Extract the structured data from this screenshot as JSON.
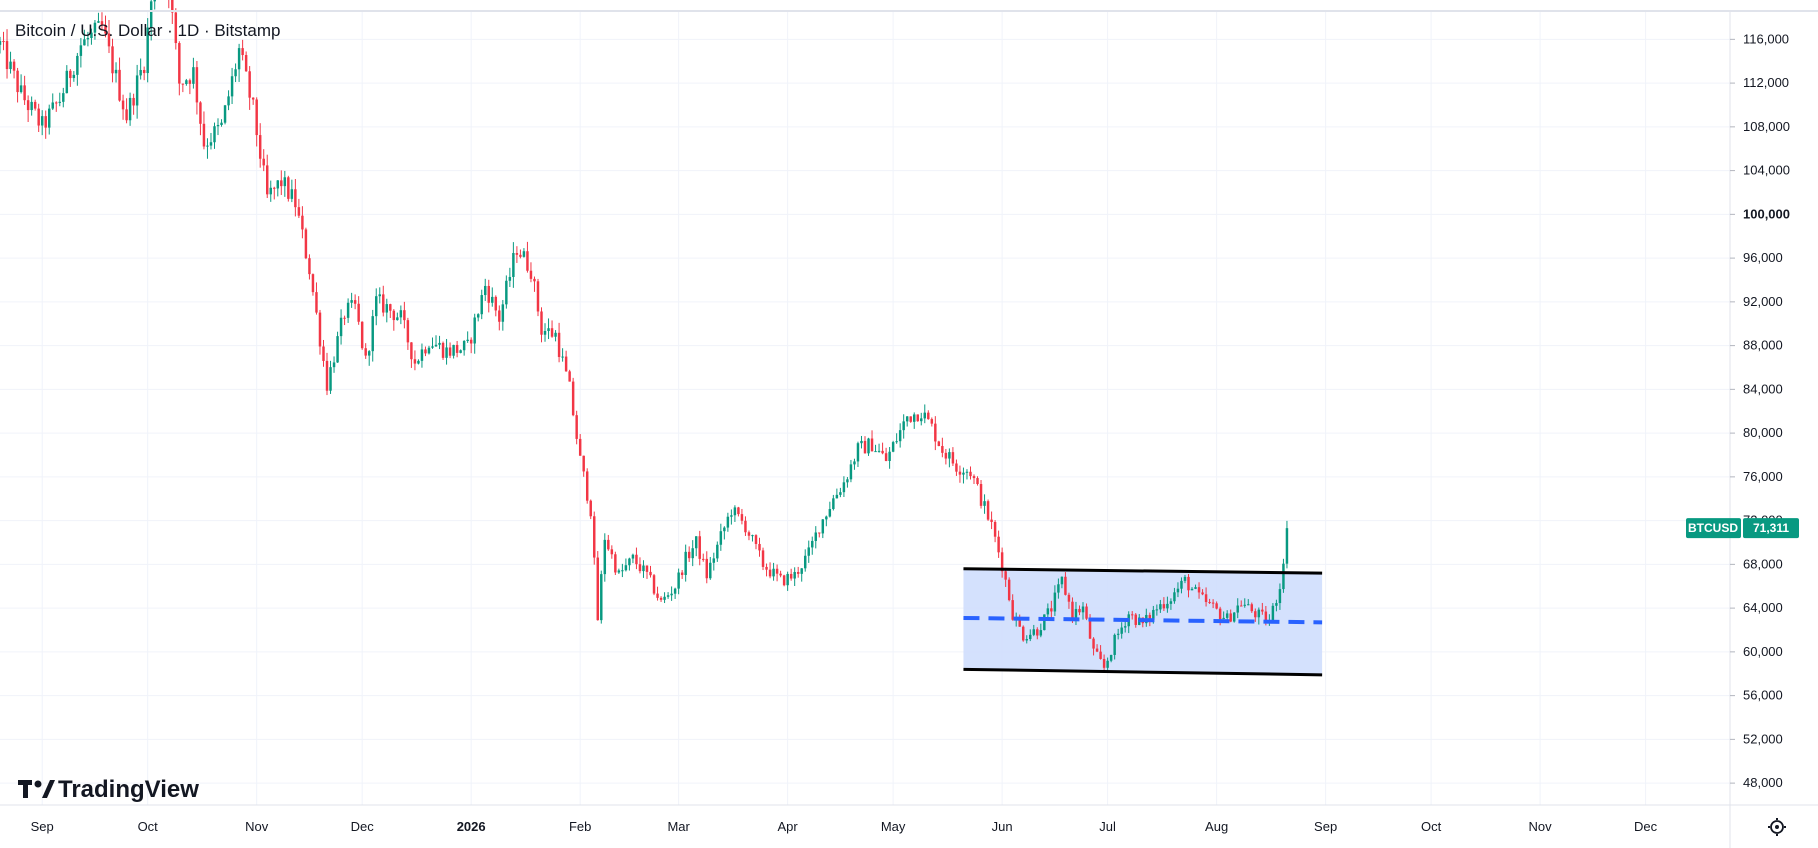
{
  "chart_data": {
    "type": "candlestick",
    "title": "Bitcoin / U.S. Dollar · 1D · Bitstamp",
    "symbol": "BTCUSD",
    "last_price": 71311,
    "last_price_label": "71,311",
    "ylim": [
      46000,
      118500
    ],
    "y_ticks": [
      48000,
      52000,
      56000,
      60000,
      64000,
      68000,
      72000,
      76000,
      80000,
      84000,
      88000,
      92000,
      96000,
      100000,
      104000,
      108000,
      112000,
      116000
    ],
    "y_tick_labels": [
      "48,000",
      "52,000",
      "56,000",
      "60,000",
      "64,000",
      "68,000",
      "72,000",
      "76,000",
      "80,000",
      "84,000",
      "88,000",
      "92,000",
      "96,000",
      "100,000",
      "104,000",
      "108,000",
      "112,000",
      "116,000"
    ],
    "x_range": [
      "2025-08-20",
      "2026-12-25"
    ],
    "x_ticks": [
      {
        "date": "2025-09-01",
        "label": "Sep"
      },
      {
        "date": "2025-10-01",
        "label": "Oct"
      },
      {
        "date": "2025-11-01",
        "label": "Nov"
      },
      {
        "date": "2025-12-01",
        "label": "Dec"
      },
      {
        "date": "2026-01-01",
        "label": "2026",
        "bold": true
      },
      {
        "date": "2026-02-01",
        "label": "Feb"
      },
      {
        "date": "2026-03-01",
        "label": "Mar"
      },
      {
        "date": "2026-04-01",
        "label": "Apr"
      },
      {
        "date": "2026-05-01",
        "label": "May"
      },
      {
        "date": "2026-06-01",
        "label": "Jun"
      },
      {
        "date": "2026-07-01",
        "label": "Jul"
      },
      {
        "date": "2026-08-01",
        "label": "Aug"
      },
      {
        "date": "2026-09-01",
        "label": "Sep"
      },
      {
        "date": "2026-10-01",
        "label": "Oct"
      },
      {
        "date": "2026-11-01",
        "label": "Nov"
      },
      {
        "date": "2026-12-01",
        "label": "Dec"
      }
    ],
    "grid": true,
    "price_path": [
      [
        "2025-08-20",
        115500
      ],
      [
        "2025-08-26",
        111000
      ],
      [
        "2025-09-01",
        108000
      ],
      [
        "2025-09-06",
        110500
      ],
      [
        "2025-09-12",
        115500
      ],
      [
        "2025-09-18",
        117000
      ],
      [
        "2025-09-25",
        109000
      ],
      [
        "2025-09-30",
        114000
      ],
      [
        "2025-10-02",
        119500
      ],
      [
        "2025-10-06",
        124000
      ],
      [
        "2025-10-10",
        112000
      ],
      [
        "2025-10-14",
        113000
      ],
      [
        "2025-10-17",
        106500
      ],
      [
        "2025-10-22",
        108000
      ],
      [
        "2025-10-27",
        115000
      ],
      [
        "2025-10-31",
        109500
      ],
      [
        "2025-11-04",
        101500
      ],
      [
        "2025-11-08",
        103000
      ],
      [
        "2025-11-12",
        101000
      ],
      [
        "2025-11-16",
        95000
      ],
      [
        "2025-11-21",
        84500
      ],
      [
        "2025-11-26",
        91000
      ],
      [
        "2025-11-29",
        91500
      ],
      [
        "2025-12-02",
        86500
      ],
      [
        "2025-12-05",
        92000
      ],
      [
        "2025-12-08",
        91500
      ],
      [
        "2025-12-12",
        90500
      ],
      [
        "2025-12-16",
        86500
      ],
      [
        "2025-12-20",
        88500
      ],
      [
        "2025-12-25",
        87500
      ],
      [
        "2025-12-31",
        87800
      ],
      [
        "2026-01-05",
        93500
      ],
      [
        "2026-01-09",
        90500
      ],
      [
        "2026-01-14",
        97000
      ],
      [
        "2026-01-18",
        95000
      ],
      [
        "2026-01-21",
        89500
      ],
      [
        "2026-01-25",
        89000
      ],
      [
        "2026-01-29",
        84000
      ],
      [
        "2026-02-01",
        77500
      ],
      [
        "2026-02-04",
        73000
      ],
      [
        "2026-02-06",
        63000
      ],
      [
        "2026-02-08",
        70500
      ],
      [
        "2026-02-12",
        67000
      ],
      [
        "2026-02-16",
        68500
      ],
      [
        "2026-02-20",
        67000
      ],
      [
        "2026-02-24",
        64500
      ],
      [
        "2026-02-28",
        66000
      ],
      [
        "2026-03-03",
        68500
      ],
      [
        "2026-03-06",
        70000
      ],
      [
        "2026-03-09",
        67000
      ],
      [
        "2026-03-13",
        70500
      ],
      [
        "2026-03-16",
        73000
      ],
      [
        "2026-03-20",
        71500
      ],
      [
        "2026-03-25",
        68000
      ],
      [
        "2026-03-30",
        66500
      ],
      [
        "2026-04-03",
        67000
      ],
      [
        "2026-04-07",
        69000
      ],
      [
        "2026-04-10",
        71500
      ],
      [
        "2026-04-14",
        74000
      ],
      [
        "2026-04-17",
        75500
      ],
      [
        "2026-04-21",
        78500
      ],
      [
        "2026-04-25",
        79000
      ],
      [
        "2026-04-29",
        77500
      ],
      [
        "2026-05-02",
        79500
      ],
      [
        "2026-05-05",
        81500
      ],
      [
        "2026-05-09",
        82000
      ],
      [
        "2026-05-12",
        80500
      ],
      [
        "2026-05-15",
        78500
      ],
      [
        "2026-05-19",
        77000
      ],
      [
        "2026-05-23",
        76500
      ],
      [
        "2026-05-26",
        74000
      ],
      [
        "2026-05-29",
        71500
      ],
      [
        "2026-06-01",
        68000
      ],
      [
        "2026-06-04",
        63500
      ],
      [
        "2026-06-07",
        61500
      ],
      [
        "2026-06-11",
        62000
      ],
      [
        "2026-06-15",
        64000
      ],
      [
        "2026-06-18",
        66500
      ],
      [
        "2026-06-21",
        63500
      ],
      [
        "2026-06-24",
        64000
      ],
      [
        "2026-06-27",
        60000
      ],
      [
        "2026-06-30",
        58500
      ],
      [
        "2026-07-03",
        61000
      ],
      [
        "2026-07-07",
        63500
      ],
      [
        "2026-07-11",
        62500
      ],
      [
        "2026-07-15",
        64000
      ],
      [
        "2026-07-19",
        65000
      ],
      [
        "2026-07-23",
        66500
      ],
      [
        "2026-07-27",
        65000
      ],
      [
        "2026-07-31",
        64000
      ],
      [
        "2026-08-04",
        63000
      ],
      [
        "2026-08-08",
        64500
      ],
      [
        "2026-08-12",
        63500
      ],
      [
        "2026-08-16",
        62800
      ],
      [
        "2026-08-19",
        66000
      ],
      [
        "2026-08-21",
        71311
      ]
    ],
    "drawings": [
      {
        "kind": "rectangle",
        "start": "2026-05-21",
        "end": "2026-08-31",
        "top": [
          67600,
          67200
        ],
        "bottom": [
          58400,
          57900
        ],
        "fill": "#cfdefd"
      },
      {
        "kind": "dashed-line",
        "start": "2026-05-21",
        "end": "2026-08-31",
        "values": [
          63100,
          62700
        ],
        "color": "#2962ff"
      }
    ],
    "watermark": "TradingView",
    "colors": {
      "up": "#089981",
      "down": "#f23645",
      "grid": "#f0f3fa",
      "text": "#131722",
      "badge": "#089981"
    }
  }
}
